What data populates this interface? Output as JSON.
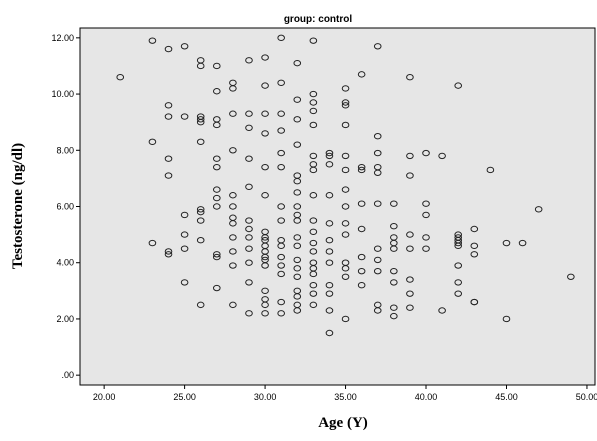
{
  "chart_data": {
    "type": "scatter",
    "title": "group: control",
    "xlabel": "Age (Y)",
    "ylabel": "Testosterone (ng/dl)",
    "xlim": [
      18.5,
      50.5
    ],
    "ylim": [
      -0.35,
      12.35
    ],
    "xticks": [
      "20.00",
      "25.00",
      "30.00",
      "35.00",
      "40.00",
      "45.00",
      "50.00"
    ],
    "yticks": [
      ".00",
      "2.00",
      "4.00",
      "6.00",
      "8.00",
      "10.00",
      "12.00"
    ],
    "grid": false,
    "legend": "none",
    "colors": {
      "plot_background": "#e6e6e6",
      "marker_stroke": "#222222",
      "axis": "#000000"
    },
    "points": [
      [
        21,
        10.6
      ],
      [
        23,
        11.9
      ],
      [
        23,
        8.3
      ],
      [
        23,
        4.7
      ],
      [
        24,
        11.6
      ],
      [
        24,
        9.6
      ],
      [
        24,
        9.2
      ],
      [
        24,
        7.7
      ],
      [
        24,
        7.1
      ],
      [
        24,
        4.4
      ],
      [
        24,
        4.3
      ],
      [
        25,
        11.7
      ],
      [
        25,
        9.2
      ],
      [
        25,
        5.7
      ],
      [
        25,
        5.0
      ],
      [
        25,
        4.5
      ],
      [
        25,
        3.3
      ],
      [
        26,
        11.2
      ],
      [
        26,
        11.0
      ],
      [
        26,
        9.2
      ],
      [
        26,
        9.1
      ],
      [
        26,
        9.0
      ],
      [
        26,
        8.3
      ],
      [
        26,
        5.9
      ],
      [
        26,
        5.8
      ],
      [
        26,
        5.5
      ],
      [
        26,
        4.8
      ],
      [
        26,
        2.5
      ],
      [
        27,
        11.0
      ],
      [
        27,
        10.1
      ],
      [
        27,
        9.1
      ],
      [
        27,
        8.9
      ],
      [
        27,
        7.7
      ],
      [
        27,
        7.4
      ],
      [
        27,
        6.6
      ],
      [
        27,
        6.3
      ],
      [
        27,
        6.0
      ],
      [
        27,
        4.3
      ],
      [
        27,
        4.2
      ],
      [
        27,
        3.1
      ],
      [
        28,
        10.4
      ],
      [
        28,
        10.2
      ],
      [
        28,
        9.3
      ],
      [
        28,
        8.0
      ],
      [
        28,
        6.4
      ],
      [
        28,
        6.0
      ],
      [
        28,
        5.6
      ],
      [
        28,
        5.4
      ],
      [
        28,
        4.9
      ],
      [
        28,
        4.4
      ],
      [
        28,
        3.9
      ],
      [
        28,
        2.5
      ],
      [
        29,
        11.2
      ],
      [
        29,
        9.3
      ],
      [
        29,
        8.8
      ],
      [
        29,
        7.7
      ],
      [
        29,
        6.7
      ],
      [
        29,
        5.5
      ],
      [
        29,
        5.2
      ],
      [
        29,
        4.9
      ],
      [
        29,
        4.5
      ],
      [
        29,
        4.0
      ],
      [
        29,
        3.3
      ],
      [
        29,
        2.2
      ],
      [
        30,
        11.3
      ],
      [
        30,
        10.3
      ],
      [
        30,
        9.3
      ],
      [
        30,
        8.6
      ],
      [
        30,
        7.4
      ],
      [
        30,
        6.4
      ],
      [
        30,
        5.1
      ],
      [
        30,
        4.9
      ],
      [
        30,
        4.8
      ],
      [
        30,
        4.6
      ],
      [
        30,
        4.4
      ],
      [
        30,
        4.2
      ],
      [
        30,
        4.1
      ],
      [
        30,
        3.9
      ],
      [
        30,
        3.0
      ],
      [
        30,
        2.7
      ],
      [
        30,
        2.5
      ],
      [
        30,
        2.2
      ],
      [
        31,
        12.0
      ],
      [
        31,
        10.4
      ],
      [
        31,
        9.3
      ],
      [
        31,
        8.7
      ],
      [
        31,
        7.9
      ],
      [
        31,
        7.4
      ],
      [
        31,
        6.0
      ],
      [
        31,
        5.5
      ],
      [
        31,
        4.8
      ],
      [
        31,
        4.6
      ],
      [
        31,
        4.2
      ],
      [
        31,
        3.9
      ],
      [
        31,
        3.6
      ],
      [
        31,
        2.6
      ],
      [
        31,
        2.2
      ],
      [
        32,
        11.1
      ],
      [
        32,
        9.8
      ],
      [
        32,
        9.1
      ],
      [
        32,
        8.2
      ],
      [
        32,
        7.1
      ],
      [
        32,
        6.9
      ],
      [
        32,
        6.5
      ],
      [
        32,
        6.0
      ],
      [
        32,
        5.7
      ],
      [
        32,
        5.5
      ],
      [
        32,
        4.9
      ],
      [
        32,
        4.6
      ],
      [
        32,
        4.1
      ],
      [
        32,
        3.8
      ],
      [
        32,
        3.5
      ],
      [
        32,
        3.0
      ],
      [
        32,
        2.8
      ],
      [
        32,
        2.5
      ],
      [
        32,
        2.3
      ],
      [
        33,
        11.9
      ],
      [
        33,
        10.0
      ],
      [
        33,
        9.7
      ],
      [
        33,
        9.4
      ],
      [
        33,
        8.9
      ],
      [
        33,
        7.8
      ],
      [
        33,
        7.5
      ],
      [
        33,
        7.3
      ],
      [
        33,
        6.4
      ],
      [
        33,
        5.5
      ],
      [
        33,
        5.1
      ],
      [
        33,
        4.7
      ],
      [
        33,
        4.4
      ],
      [
        33,
        4.0
      ],
      [
        33,
        3.8
      ],
      [
        33,
        3.6
      ],
      [
        33,
        3.2
      ],
      [
        33,
        2.9
      ],
      [
        33,
        2.5
      ],
      [
        34,
        7.9
      ],
      [
        34,
        7.8
      ],
      [
        34,
        7.5
      ],
      [
        34,
        6.4
      ],
      [
        34,
        5.4
      ],
      [
        34,
        4.8
      ],
      [
        34,
        4.4
      ],
      [
        34,
        4.0
      ],
      [
        34,
        3.2
      ],
      [
        34,
        2.9
      ],
      [
        34,
        2.3
      ],
      [
        34,
        1.5
      ],
      [
        35,
        10.2
      ],
      [
        35,
        9.7
      ],
      [
        35,
        9.6
      ],
      [
        35,
        8.9
      ],
      [
        35,
        7.8
      ],
      [
        35,
        7.3
      ],
      [
        35,
        6.6
      ],
      [
        35,
        6.0
      ],
      [
        35,
        5.4
      ],
      [
        35,
        5.0
      ],
      [
        35,
        4.0
      ],
      [
        35,
        3.8
      ],
      [
        35,
        3.5
      ],
      [
        35,
        2.0
      ],
      [
        36,
        10.7
      ],
      [
        36,
        7.4
      ],
      [
        36,
        7.3
      ],
      [
        36,
        6.1
      ],
      [
        36,
        5.2
      ],
      [
        36,
        4.2
      ],
      [
        36,
        3.7
      ],
      [
        36,
        3.2
      ],
      [
        37,
        11.7
      ],
      [
        37,
        8.5
      ],
      [
        37,
        7.9
      ],
      [
        37,
        7.4
      ],
      [
        37,
        7.2
      ],
      [
        37,
        6.1
      ],
      [
        37,
        4.5
      ],
      [
        37,
        4.1
      ],
      [
        37,
        3.7
      ],
      [
        37,
        2.5
      ],
      [
        37,
        2.3
      ],
      [
        38,
        6.1
      ],
      [
        38,
        5.3
      ],
      [
        38,
        4.9
      ],
      [
        38,
        4.7
      ],
      [
        38,
        4.5
      ],
      [
        38,
        3.7
      ],
      [
        38,
        3.3
      ],
      [
        38,
        2.4
      ],
      [
        38,
        2.1
      ],
      [
        39,
        10.6
      ],
      [
        39,
        7.8
      ],
      [
        39,
        7.1
      ],
      [
        39,
        5.0
      ],
      [
        39,
        4.5
      ],
      [
        39,
        3.4
      ],
      [
        39,
        2.9
      ],
      [
        39,
        2.4
      ],
      [
        40,
        7.9
      ],
      [
        40,
        6.1
      ],
      [
        40,
        5.7
      ],
      [
        40,
        4.9
      ],
      [
        40,
        4.5
      ],
      [
        41,
        7.8
      ],
      [
        41,
        2.3
      ],
      [
        42,
        10.3
      ],
      [
        42,
        5.0
      ],
      [
        42,
        4.9
      ],
      [
        42,
        4.8
      ],
      [
        42,
        4.7
      ],
      [
        42,
        4.6
      ],
      [
        42,
        3.9
      ],
      [
        42,
        3.3
      ],
      [
        42,
        2.9
      ],
      [
        43,
        5.2
      ],
      [
        43,
        4.6
      ],
      [
        43,
        4.3
      ],
      [
        43,
        2.6
      ],
      [
        43,
        2.6
      ],
      [
        44,
        7.3
      ],
      [
        45,
        4.7
      ],
      [
        45,
        2.0
      ],
      [
        46,
        4.7
      ],
      [
        47,
        5.9
      ],
      [
        49,
        3.5
      ]
    ]
  }
}
